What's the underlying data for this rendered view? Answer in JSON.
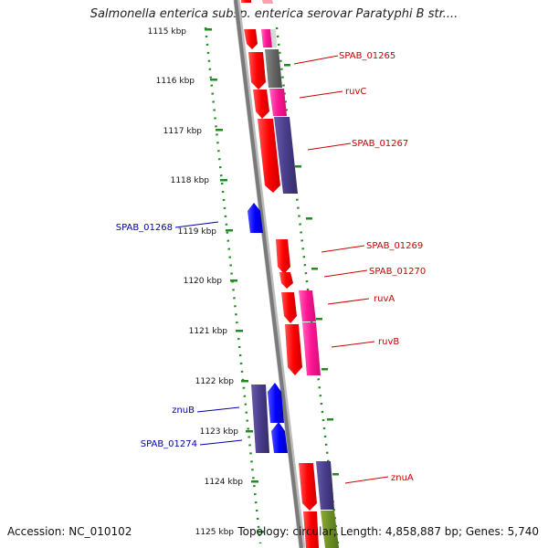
{
  "title": "Salmonella enterica subsp. enterica serovar Paratyphi B str....",
  "footer": {
    "accession": "Accession: NC_010102",
    "summary": "Topology: circular; Length: 4,858,887 bp; Genes: 5,740"
  },
  "colors": {
    "backbone": "#8a8a8a",
    "forward_label": "#cc0000",
    "reverse_label": "#0000aa",
    "tick_dots": "#228b22"
  },
  "tick_labels": [
    "1115 kbp",
    "1116 kbp",
    "1117 kbp",
    "1118 kbp",
    "1119 kbp",
    "1120 kbp",
    "1121 kbp",
    "1122 kbp",
    "1123 kbp",
    "1124 kbp",
    "1125 kbp"
  ],
  "gene_labels": [
    {
      "name": "SPAB_01265",
      "strand": "forward"
    },
    {
      "name": "ruvC",
      "strand": "forward"
    },
    {
      "name": "SPAB_01267",
      "strand": "forward"
    },
    {
      "name": "SPAB_01268",
      "strand": "reverse"
    },
    {
      "name": "SPAB_01269",
      "strand": "forward"
    },
    {
      "name": "SPAB_01270",
      "strand": "forward"
    },
    {
      "name": "ruvA",
      "strand": "forward"
    },
    {
      "name": "ruvB",
      "strand": "forward"
    },
    {
      "name": "znuB",
      "strand": "reverse"
    },
    {
      "name": "SPAB_01274",
      "strand": "reverse"
    },
    {
      "name": "znuA",
      "strand": "forward"
    }
  ]
}
